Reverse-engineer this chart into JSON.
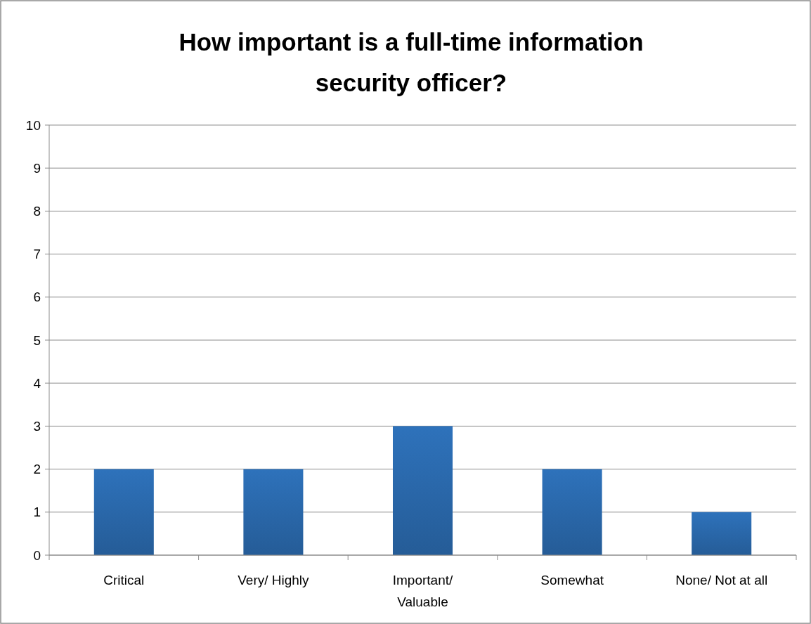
{
  "chart_data": {
    "type": "bar",
    "title": "How important is a full-time information security officer?",
    "categories": [
      "Critical",
      "Very/ Highly",
      "Important/ Valuable",
      "Somewhat",
      "None/ Not at all"
    ],
    "values": [
      2,
      2,
      3,
      2,
      1
    ],
    "color": "#2e72bb",
    "ylim": [
      0,
      10
    ],
    "yticks": [
      0,
      1,
      2,
      3,
      4,
      5,
      6,
      7,
      8,
      9,
      10
    ],
    "grid": "y"
  }
}
